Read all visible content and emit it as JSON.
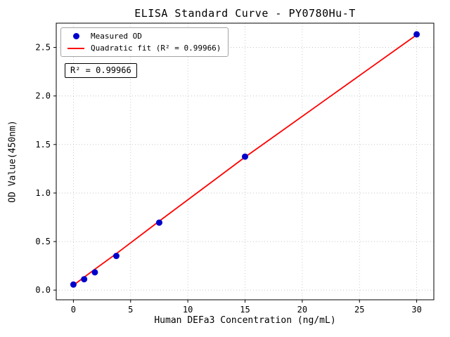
{
  "chart_data": {
    "type": "scatter",
    "title": "ELISA Standard Curve - PY0780Hu-T",
    "xlabel": "Human DEFa3 Concentration (ng/mL)",
    "ylabel": "OD Value(450nm)",
    "xlim": [
      -1.5,
      31.5
    ],
    "ylim": [
      -0.1,
      2.75
    ],
    "xticks": [
      0,
      5,
      10,
      15,
      20,
      25,
      30
    ],
    "xtick_labels": [
      "0",
      "5",
      "10",
      "15",
      "20",
      "25",
      "30"
    ],
    "yticks": [
      0.0,
      0.5,
      1.0,
      1.5,
      2.0,
      2.5
    ],
    "ytick_labels": [
      "0.0",
      "0.5",
      "1.0",
      "1.5",
      "2.0",
      "2.5"
    ],
    "grid": true,
    "grid_color": "#bdbdbd",
    "legend": {
      "position": "upper-left",
      "entries": [
        {
          "label": "Measured OD",
          "marker": "dot",
          "color": "#0000cd"
        },
        {
          "label": "Quadratic fit (R² = 0.99966)",
          "marker": "line",
          "color": "#ff0000"
        }
      ]
    },
    "annotation": "R² = 0.99966",
    "r_squared": 0.99966,
    "series": [
      {
        "name": "Measured OD",
        "type": "scatter",
        "color": "#0000cd",
        "x": [
          0,
          0.9375,
          1.875,
          3.75,
          7.5,
          15,
          30
        ],
        "y": [
          0.057,
          0.112,
          0.183,
          0.352,
          0.695,
          1.375,
          2.635
        ]
      },
      {
        "name": "Quadratic fit",
        "type": "line",
        "color": "#ff0000",
        "x": [
          0,
          1.875,
          3.75,
          7.5,
          11.25,
          15,
          22.5,
          30
        ],
        "y": [
          0.05,
          0.215,
          0.375,
          0.71,
          1.04,
          1.37,
          2.0,
          2.63
        ]
      }
    ]
  }
}
